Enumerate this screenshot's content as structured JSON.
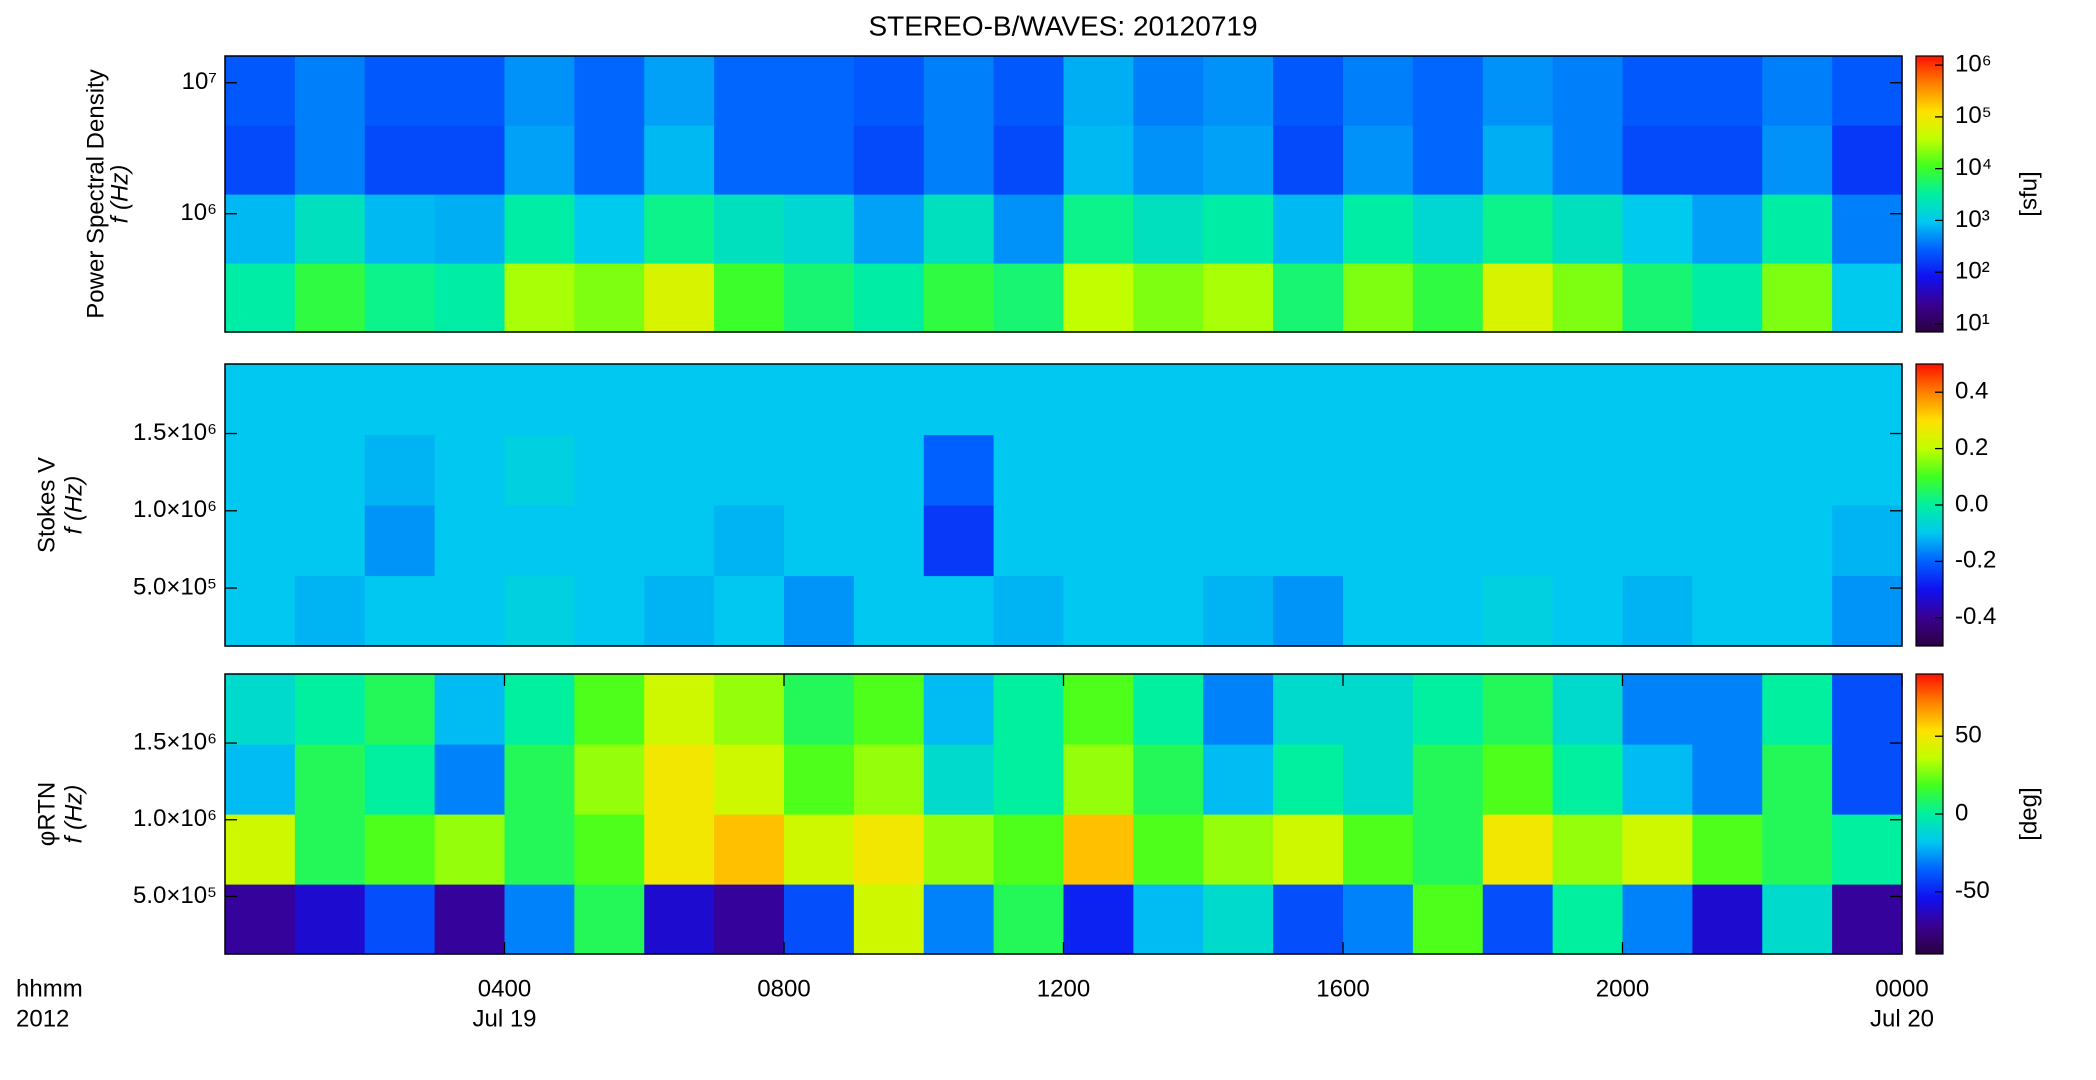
{
  "chart_data": [
    {
      "type": "heatmap",
      "title": "STEREO-B/WAVES: 20120719",
      "y_label": "Power Spectral Density",
      "y_label2": "f (Hz)",
      "xlim": [
        0,
        24
      ],
      "ylim": [
        125000,
        16000000
      ],
      "ylog": true,
      "yticks": [
        {
          "value": 1000000,
          "label": "10⁶"
        },
        {
          "value": 10000000,
          "label": "10⁷"
        }
      ],
      "clim": [
        7,
        1500000
      ],
      "clog": true,
      "cticks": [
        {
          "value": 10,
          "label": "10¹"
        },
        {
          "value": 100,
          "label": "10²"
        },
        {
          "value": 1000,
          "label": "10³"
        },
        {
          "value": 10000,
          "label": "10⁴"
        },
        {
          "value": 100000,
          "label": "10⁵"
        },
        {
          "value": 1000000,
          "label": "10⁶"
        }
      ],
      "c_label": "[sfu]",
      "z": [
        [
          3000,
          8000,
          4000,
          3000,
          30000,
          20000,
          60000,
          10000,
          5000,
          3000,
          8000,
          5000,
          40000,
          20000,
          30000,
          5000,
          20000,
          8000,
          60000,
          20000,
          5000,
          3000,
          20000,
          1000
        ],
        [
          800,
          2000,
          800,
          700,
          3000,
          1000,
          4000,
          2000,
          1500,
          600,
          2000,
          500,
          4000,
          2000,
          3000,
          800,
          3000,
          1500,
          4000,
          2000,
          1000,
          600,
          3000,
          400
        ],
        [
          200,
          400,
          200,
          200,
          600,
          300,
          800,
          300,
          300,
          200,
          400,
          200,
          800,
          500,
          600,
          200,
          500,
          300,
          700,
          400,
          200,
          200,
          500,
          150
        ],
        [
          250,
          400,
          250,
          250,
          500,
          300,
          600,
          300,
          300,
          250,
          400,
          250,
          700,
          400,
          500,
          250,
          400,
          300,
          500,
          400,
          250,
          250,
          400,
          250
        ]
      ]
    },
    {
      "type": "heatmap",
      "y_label": "Stokes V",
      "y_label2": "f (Hz)",
      "xlim": [
        0,
        24
      ],
      "ylim": [
        125000,
        1950000
      ],
      "ylog": false,
      "yticks": [
        {
          "value": 500000,
          "label": "5.0×10⁵"
        },
        {
          "value": 1000000,
          "label": "1.0×10⁶"
        },
        {
          "value": 1500000,
          "label": "1.5×10⁶"
        }
      ],
      "clim": [
        -0.5,
        0.5
      ],
      "clog": false,
      "cticks": [
        -0.4,
        -0.2,
        {
          "value": 0,
          "label": "0.0"
        },
        0.2,
        0.4
      ],
      "z": [
        [
          -0.1,
          -0.12,
          -0.1,
          -0.1,
          -0.08,
          -0.1,
          -0.12,
          -0.1,
          -0.15,
          -0.1,
          -0.1,
          -0.12,
          -0.1,
          -0.1,
          -0.12,
          -0.15,
          -0.1,
          -0.1,
          -0.08,
          -0.1,
          -0.12,
          -0.1,
          -0.1,
          -0.15
        ],
        [
          -0.1,
          -0.1,
          -0.15,
          -0.1,
          -0.1,
          -0.1,
          -0.1,
          -0.12,
          -0.1,
          -0.1,
          -0.25,
          -0.1,
          -0.1,
          -0.1,
          -0.1,
          -0.1,
          -0.1,
          -0.1,
          -0.1,
          -0.1,
          -0.1,
          -0.1,
          -0.1,
          -0.12
        ],
        [
          -0.1,
          -0.1,
          -0.12,
          -0.1,
          -0.08,
          -0.1,
          -0.1,
          -0.1,
          -0.1,
          -0.1,
          -0.2,
          -0.1,
          -0.1,
          -0.1,
          -0.1,
          -0.1,
          -0.1,
          -0.1,
          -0.1,
          -0.1,
          -0.1,
          -0.1,
          -0.1,
          -0.1
        ],
        [
          -0.1,
          -0.1,
          -0.1,
          -0.1,
          -0.1,
          -0.1,
          -0.1,
          -0.1,
          -0.1,
          -0.1,
          -0.1,
          -0.1,
          -0.1,
          -0.1,
          -0.1,
          -0.1,
          -0.1,
          -0.1,
          -0.1,
          -0.1,
          -0.1,
          -0.1,
          -0.1,
          -0.1
        ]
      ]
    },
    {
      "type": "heatmap",
      "y_label": "φRTN",
      "y_label2": "f (Hz)",
      "xlim": [
        0,
        24
      ],
      "ylim": [
        125000,
        1950000
      ],
      "ylog": false,
      "yticks": [
        {
          "value": 500000,
          "label": "5.0×10⁵"
        },
        {
          "value": 1000000,
          "label": "1.0×10⁶"
        },
        {
          "value": 1500000,
          "label": "1.5×10⁶"
        }
      ],
      "xticks": [
        {
          "value": 4,
          "label": "0400"
        },
        {
          "value": 8,
          "label": "0800"
        },
        {
          "value": 12,
          "label": "1200"
        },
        {
          "value": 16,
          "label": "1600"
        },
        {
          "value": 20,
          "label": "2000"
        },
        {
          "value": 24,
          "label": "0000"
        }
      ],
      "date_labels": [
        {
          "value": 4,
          "label": "Jul 19"
        },
        {
          "value": 24,
          "label": "Jul 20"
        }
      ],
      "x_label": "hhmm",
      "x_label2": "2012",
      "clim": [
        -90,
        90
      ],
      "clog": false,
      "cticks": [
        -50,
        0,
        50
      ],
      "c_label": "[deg]",
      "z": [
        [
          -70,
          -60,
          -40,
          -70,
          -30,
          10,
          -60,
          -70,
          -40,
          40,
          -30,
          10,
          -50,
          -20,
          -10,
          -40,
          -30,
          20,
          -40,
          0,
          -30,
          -60,
          -10,
          -70
        ],
        [
          40,
          10,
          20,
          30,
          10,
          20,
          50,
          60,
          40,
          50,
          30,
          20,
          60,
          20,
          30,
          40,
          20,
          10,
          50,
          30,
          40,
          20,
          10,
          0
        ],
        [
          -20,
          10,
          0,
          -30,
          10,
          30,
          50,
          40,
          20,
          30,
          -10,
          0,
          30,
          10,
          -20,
          0,
          -10,
          10,
          20,
          0,
          -20,
          -30,
          10,
          -40
        ],
        [
          -10,
          0,
          10,
          -20,
          0,
          20,
          40,
          30,
          10,
          20,
          -20,
          0,
          20,
          0,
          -30,
          -10,
          -10,
          0,
          10,
          -10,
          -30,
          -30,
          0,
          -40
        ]
      ]
    }
  ],
  "colormap": [
    "#2a0040",
    "#3a0090",
    "#1010f0",
    "#0060ff",
    "#00c8f0",
    "#00f0a0",
    "#40ff20",
    "#c0ff00",
    "#ffe000",
    "#ff8000",
    "#ff1000"
  ]
}
